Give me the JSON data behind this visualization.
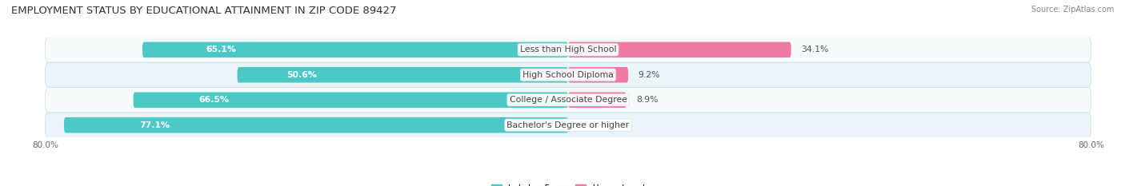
{
  "title": "EMPLOYMENT STATUS BY EDUCATIONAL ATTAINMENT IN ZIP CODE 89427",
  "source": "Source: ZipAtlas.com",
  "categories": [
    "Less than High School",
    "High School Diploma",
    "College / Associate Degree",
    "Bachelor's Degree or higher"
  ],
  "labor_force": [
    65.1,
    50.6,
    66.5,
    77.1
  ],
  "unemployed": [
    34.1,
    9.2,
    8.9,
    0.0
  ],
  "labor_color": "#4DC8C8",
  "unemployed_color": "#F07AA0",
  "row_bg_light": "#EAFAFB",
  "row_bg_dark": "#E0E8EC",
  "background_color": "#FFFFFF",
  "xlim_left": -80.0,
  "xlim_right": 80.0,
  "title_fontsize": 9.5,
  "label_fontsize": 7.8,
  "value_fontsize": 7.8
}
